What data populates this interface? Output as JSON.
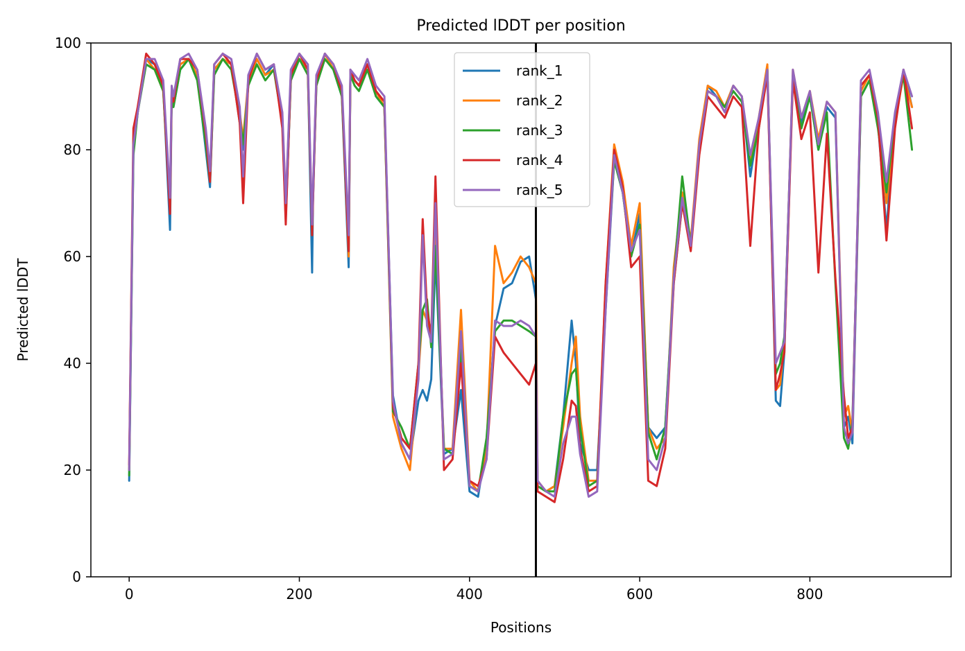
{
  "chart_data": {
    "type": "line",
    "title": "Predicted lDDT per position",
    "xlabel": "Positions",
    "ylabel": "Predicted lDDT",
    "xlim": [
      -45,
      966
    ],
    "ylim": [
      0,
      100
    ],
    "xticks": [
      0,
      200,
      400,
      600,
      800
    ],
    "yticks": [
      0,
      20,
      40,
      60,
      80,
      100
    ],
    "grid": false,
    "legend_position": "upper center",
    "divider_x": 478,
    "divider_color": "#000000",
    "series": [
      {
        "name": "rank_1",
        "color": "#1f77b4",
        "x": [
          0,
          5,
          10,
          20,
          30,
          40,
          48,
          50,
          52,
          60,
          70,
          80,
          90,
          95,
          100,
          110,
          120,
          130,
          134,
          140,
          150,
          160,
          170,
          180,
          184,
          190,
          200,
          210,
          215,
          216,
          220,
          230,
          240,
          250,
          258,
          260,
          265,
          270,
          280,
          290,
          300,
          310,
          320,
          330,
          340,
          345,
          350,
          355,
          360,
          370,
          380,
          390,
          400,
          410,
          420,
          430,
          440,
          450,
          460,
          470,
          478,
          480,
          490,
          500,
          510,
          520,
          525,
          530,
          540,
          550,
          560,
          570,
          580,
          590,
          600,
          610,
          620,
          630,
          640,
          650,
          660,
          670,
          680,
          690,
          700,
          710,
          720,
          730,
          740,
          750,
          760,
          765,
          770,
          780,
          790,
          800,
          810,
          820,
          830,
          840,
          845,
          850,
          860,
          870,
          880,
          890,
          900,
          910,
          920
        ],
        "y": [
          18,
          80,
          87,
          97,
          96,
          92,
          65,
          90,
          88,
          95,
          97,
          94,
          80,
          73,
          95,
          97,
          96,
          85,
          80,
          92,
          97,
          94,
          96,
          85,
          67,
          93,
          97,
          95,
          57,
          70,
          92,
          98,
          95,
          90,
          58,
          95,
          93,
          92,
          96,
          90,
          88,
          34,
          25,
          22,
          33,
          35,
          33,
          37,
          60,
          23,
          24,
          35,
          16,
          15,
          25,
          47,
          54,
          55,
          59,
          60,
          52,
          17,
          16,
          17,
          30,
          48,
          40,
          25,
          20,
          20,
          50,
          78,
          72,
          60,
          68,
          28,
          26,
          28,
          55,
          70,
          62,
          80,
          92,
          90,
          88,
          92,
          90,
          75,
          85,
          95,
          33,
          32,
          42,
          94,
          85,
          90,
          80,
          88,
          86,
          28,
          30,
          25,
          90,
          93,
          85,
          65,
          86,
          95,
          88
        ]
      },
      {
        "name": "rank_2",
        "color": "#ff7f0e",
        "x": [
          0,
          5,
          10,
          20,
          30,
          40,
          48,
          50,
          52,
          60,
          70,
          80,
          90,
          95,
          100,
          110,
          120,
          130,
          134,
          140,
          150,
          160,
          170,
          180,
          184,
          190,
          200,
          210,
          215,
          216,
          220,
          230,
          240,
          250,
          258,
          260,
          265,
          270,
          280,
          290,
          300,
          310,
          320,
          330,
          340,
          345,
          350,
          355,
          360,
          370,
          380,
          390,
          400,
          410,
          420,
          430,
          440,
          450,
          460,
          470,
          478,
          480,
          490,
          500,
          510,
          520,
          525,
          530,
          540,
          550,
          560,
          570,
          580,
          590,
          600,
          610,
          620,
          630,
          640,
          650,
          660,
          670,
          680,
          690,
          700,
          710,
          720,
          730,
          740,
          750,
          760,
          765,
          770,
          780,
          790,
          800,
          810,
          820,
          830,
          840,
          845,
          850,
          860,
          870,
          880,
          890,
          900,
          910,
          920
        ],
        "y": [
          20,
          82,
          88,
          97,
          95,
          91,
          70,
          91,
          89,
          96,
          97,
          94,
          82,
          75,
          95,
          97,
          96,
          87,
          82,
          93,
          97,
          94,
          95,
          86,
          70,
          94,
          97,
          95,
          65,
          72,
          93,
          98,
          95,
          91,
          60,
          94,
          93,
          92,
          96,
          91,
          88,
          30,
          24,
          20,
          38,
          50,
          48,
          45,
          65,
          24,
          24,
          50,
          18,
          16,
          24,
          62,
          55,
          57,
          60,
          58,
          55,
          18,
          16,
          17,
          28,
          40,
          45,
          30,
          18,
          18,
          55,
          81,
          74,
          62,
          70,
          28,
          24,
          26,
          58,
          72,
          63,
          82,
          92,
          91,
          88,
          92,
          90,
          78,
          86,
          96,
          35,
          36,
          44,
          95,
          86,
          91,
          82,
          89,
          87,
          30,
          32,
          27,
          91,
          94,
          86,
          70,
          85,
          94,
          88
        ]
      },
      {
        "name": "rank_3",
        "color": "#2ca02c",
        "x": [
          0,
          5,
          10,
          20,
          30,
          40,
          48,
          50,
          52,
          60,
          70,
          80,
          90,
          95,
          100,
          110,
          120,
          130,
          134,
          140,
          150,
          160,
          170,
          180,
          184,
          190,
          200,
          210,
          215,
          216,
          220,
          230,
          240,
          250,
          258,
          260,
          265,
          270,
          280,
          290,
          300,
          310,
          320,
          330,
          340,
          345,
          350,
          355,
          360,
          370,
          380,
          390,
          400,
          410,
          420,
          430,
          440,
          450,
          460,
          470,
          478,
          480,
          490,
          500,
          510,
          520,
          525,
          530,
          540,
          550,
          560,
          570,
          580,
          590,
          600,
          610,
          620,
          630,
          640,
          650,
          660,
          670,
          680,
          690,
          700,
          710,
          720,
          730,
          740,
          750,
          760,
          765,
          770,
          780,
          790,
          800,
          810,
          820,
          830,
          840,
          845,
          850,
          860,
          870,
          880,
          890,
          900,
          910,
          920
        ],
        "y": [
          19,
          79,
          87,
          96,
          95,
          91,
          69,
          90,
          88,
          95,
          97,
          93,
          81,
          74,
          94,
          97,
          95,
          86,
          81,
          92,
          96,
          93,
          95,
          85,
          68,
          93,
          97,
          94,
          64,
          71,
          92,
          97,
          95,
          90,
          62,
          94,
          92,
          91,
          95,
          90,
          88,
          31,
          28,
          24,
          40,
          50,
          52,
          43,
          62,
          24,
          23,
          43,
          17,
          16,
          26,
          46,
          48,
          48,
          47,
          46,
          45,
          17,
          16,
          16,
          30,
          38,
          39,
          28,
          17,
          18,
          52,
          78,
          72,
          60,
          66,
          27,
          22,
          28,
          56,
          75,
          62,
          80,
          91,
          90,
          88,
          91,
          89,
          77,
          84,
          95,
          38,
          40,
          45,
          94,
          84,
          90,
          80,
          87,
          55,
          26,
          24,
          29,
          90,
          93,
          84,
          72,
          86,
          94,
          80
        ]
      },
      {
        "name": "rank_4",
        "color": "#d62728",
        "x": [
          0,
          5,
          10,
          20,
          30,
          40,
          48,
          50,
          52,
          60,
          70,
          80,
          90,
          95,
          100,
          110,
          120,
          130,
          134,
          140,
          150,
          160,
          170,
          180,
          184,
          190,
          200,
          210,
          215,
          216,
          220,
          230,
          240,
          250,
          258,
          260,
          265,
          270,
          280,
          290,
          300,
          310,
          320,
          330,
          340,
          345,
          350,
          355,
          360,
          370,
          380,
          390,
          400,
          410,
          420,
          430,
          440,
          450,
          460,
          470,
          478,
          480,
          490,
          500,
          510,
          520,
          525,
          530,
          540,
          550,
          560,
          570,
          580,
          590,
          600,
          610,
          620,
          630,
          640,
          650,
          660,
          670,
          680,
          690,
          700,
          710,
          720,
          730,
          740,
          750,
          760,
          765,
          770,
          780,
          790,
          800,
          810,
          820,
          830,
          840,
          845,
          850,
          860,
          870,
          880,
          890,
          900,
          910,
          920
        ],
        "y": [
          21,
          84,
          88,
          98,
          96,
          92,
          68,
          91,
          89,
          97,
          97,
          95,
          83,
          74,
          96,
          98,
          96,
          85,
          70,
          93,
          98,
          95,
          96,
          84,
          66,
          94,
          98,
          95,
          64,
          70,
          93,
          98,
          96,
          91,
          61,
          95,
          93,
          92,
          96,
          91,
          89,
          32,
          26,
          24,
          40,
          67,
          50,
          45,
          75,
          20,
          22,
          40,
          18,
          17,
          22,
          45,
          42,
          40,
          38,
          36,
          40,
          16,
          15,
          14,
          22,
          33,
          32,
          24,
          16,
          17,
          55,
          80,
          73,
          58,
          60,
          18,
          17,
          24,
          55,
          70,
          61,
          79,
          90,
          88,
          86,
          90,
          88,
          62,
          84,
          94,
          35,
          38,
          42,
          93,
          82,
          87,
          57,
          83,
          56,
          34,
          26,
          28,
          92,
          94,
          86,
          63,
          84,
          95,
          84
        ]
      },
      {
        "name": "rank_5",
        "color": "#9467bd",
        "x": [
          0,
          5,
          10,
          20,
          30,
          40,
          48,
          50,
          52,
          60,
          70,
          80,
          90,
          95,
          100,
          110,
          120,
          130,
          134,
          140,
          150,
          160,
          170,
          180,
          184,
          190,
          200,
          210,
          215,
          216,
          220,
          230,
          240,
          250,
          258,
          260,
          265,
          270,
          280,
          290,
          300,
          310,
          320,
          330,
          340,
          345,
          350,
          355,
          360,
          370,
          380,
          390,
          400,
          410,
          420,
          430,
          440,
          450,
          460,
          470,
          478,
          480,
          490,
          500,
          510,
          520,
          525,
          530,
          540,
          550,
          560,
          570,
          580,
          590,
          600,
          610,
          620,
          630,
          640,
          650,
          660,
          670,
          680,
          690,
          700,
          710,
          720,
          730,
          740,
          750,
          760,
          765,
          770,
          780,
          790,
          800,
          810,
          820,
          830,
          840,
          845,
          850,
          860,
          870,
          880,
          890,
          900,
          910,
          920
        ],
        "y": [
          20,
          81,
          87,
          97,
          97,
          93,
          71,
          92,
          90,
          97,
          98,
          95,
          84,
          76,
          96,
          98,
          97,
          88,
          75,
          94,
          98,
          95,
          96,
          87,
          70,
          95,
          98,
          96,
          66,
          72,
          94,
          98,
          96,
          92,
          64,
          95,
          94,
          93,
          97,
          92,
          90,
          33,
          25,
          22,
          37,
          64,
          47,
          44,
          70,
          22,
          23,
          46,
          17,
          16,
          22,
          48,
          47,
          47,
          48,
          47,
          45,
          18,
          16,
          15,
          25,
          30,
          30,
          23,
          15,
          16,
          50,
          79,
          72,
          61,
          65,
          22,
          20,
          26,
          56,
          71,
          62,
          81,
          91,
          90,
          87,
          92,
          90,
          79,
          86,
          95,
          40,
          42,
          44,
          95,
          86,
          91,
          81,
          89,
          87,
          28,
          25,
          27,
          93,
          95,
          87,
          74,
          87,
          95,
          90
        ]
      }
    ]
  }
}
